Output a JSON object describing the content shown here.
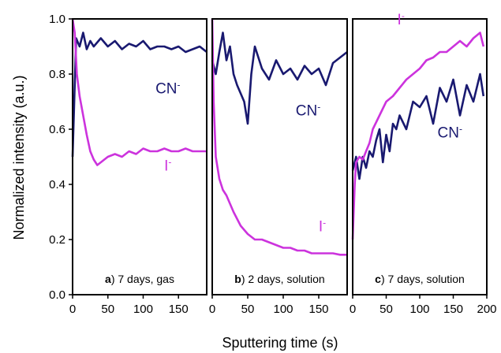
{
  "colors": {
    "cn": "#191970",
    "iodide": "#cc33dd",
    "axis": "#000000"
  },
  "chart_data": {
    "type": "line",
    "ylabel": "Normalized intensity (a.u.)",
    "xlabel": "Sputtering time (s)",
    "ylim": [
      0,
      1.0
    ],
    "yticks": [
      "0.0",
      "0.2",
      "0.4",
      "0.6",
      "0.8",
      "1.0"
    ],
    "grid": false,
    "panels": [
      {
        "panel_id": "a",
        "label_rest": ") 7 days, gas",
        "xlim": [
          0,
          190
        ],
        "xticks": [
          "0",
          "50",
          "100",
          "150"
        ],
        "xtick_values": [
          0,
          50,
          100,
          150
        ],
        "series": [
          {
            "name": "CN⁻",
            "color": "#191970",
            "x": [
              0,
              5,
              10,
              15,
              20,
              25,
              30,
              40,
              50,
              60,
              70,
              80,
              90,
              100,
              110,
              120,
              130,
              140,
              150,
              160,
              170,
              180,
              190
            ],
            "y": [
              0.5,
              0.93,
              0.9,
              0.95,
              0.89,
              0.92,
              0.9,
              0.93,
              0.9,
              0.92,
              0.89,
              0.91,
              0.9,
              0.92,
              0.89,
              0.9,
              0.9,
              0.89,
              0.9,
              0.88,
              0.89,
              0.9,
              0.88
            ]
          },
          {
            "name": "I⁻",
            "color": "#cc33dd",
            "x": [
              0,
              3,
              6,
              10,
              15,
              20,
              25,
              30,
              35,
              40,
              50,
              60,
              70,
              80,
              90,
              100,
              110,
              120,
              130,
              140,
              150,
              160,
              170,
              180,
              190
            ],
            "y": [
              1.0,
              0.95,
              0.8,
              0.72,
              0.65,
              0.58,
              0.52,
              0.49,
              0.47,
              0.48,
              0.5,
              0.51,
              0.5,
              0.52,
              0.51,
              0.53,
              0.52,
              0.52,
              0.53,
              0.52,
              0.52,
              0.53,
              0.52,
              0.52,
              0.52
            ]
          }
        ],
        "annotations": [
          {
            "text": "CN⁻",
            "x": 135,
            "y": 0.73,
            "color": "#191970"
          },
          {
            "text": "I⁻",
            "x": 135,
            "y": 0.45,
            "color": "#cc33dd"
          }
        ]
      },
      {
        "panel_id": "b",
        "label_rest": ") 2 days, solution",
        "xlim": [
          0,
          190
        ],
        "xticks": [
          "0",
          "50",
          "100",
          "150"
        ],
        "xtick_values": [
          0,
          50,
          100,
          150
        ],
        "series": [
          {
            "name": "CN⁻",
            "color": "#191970",
            "x": [
              0,
              5,
              10,
              15,
              20,
              25,
              30,
              35,
              40,
              45,
              50,
              55,
              60,
              70,
              80,
              90,
              100,
              110,
              120,
              130,
              140,
              150,
              160,
              170,
              180,
              190
            ],
            "y": [
              0.85,
              0.8,
              0.88,
              0.95,
              0.85,
              0.9,
              0.8,
              0.76,
              0.73,
              0.7,
              0.62,
              0.8,
              0.9,
              0.82,
              0.78,
              0.85,
              0.8,
              0.82,
              0.78,
              0.83,
              0.8,
              0.82,
              0.76,
              0.84,
              0.86,
              0.88
            ]
          },
          {
            "name": "I⁻",
            "color": "#cc33dd",
            "x": [
              0,
              2,
              5,
              10,
              15,
              20,
              30,
              40,
              50,
              60,
              70,
              80,
              90,
              100,
              110,
              120,
              130,
              140,
              150,
              160,
              170,
              180,
              190
            ],
            "y": [
              1.0,
              0.7,
              0.5,
              0.42,
              0.38,
              0.36,
              0.3,
              0.25,
              0.22,
              0.2,
              0.2,
              0.19,
              0.18,
              0.17,
              0.17,
              0.16,
              0.16,
              0.15,
              0.15,
              0.15,
              0.15,
              0.145,
              0.145
            ]
          }
        ],
        "annotations": [
          {
            "text": "CN⁻",
            "x": 135,
            "y": 0.65,
            "color": "#191970"
          },
          {
            "text": "I⁻",
            "x": 155,
            "y": 0.23,
            "color": "#cc33dd"
          }
        ]
      },
      {
        "panel_id": "c",
        "label_rest": ") 7 days, solution",
        "xlim": [
          0,
          200
        ],
        "xticks": [
          "0",
          "50",
          "100",
          "150",
          "200"
        ],
        "xtick_values": [
          0,
          50,
          100,
          150,
          200
        ],
        "series": [
          {
            "name": "CN⁻",
            "color": "#191970",
            "x": [
              0,
              5,
              10,
              15,
              20,
              25,
              30,
              35,
              40,
              45,
              50,
              55,
              60,
              65,
              70,
              80,
              90,
              100,
              110,
              120,
              130,
              140,
              150,
              160,
              170,
              180,
              190,
              195
            ],
            "y": [
              0.45,
              0.5,
              0.42,
              0.5,
              0.46,
              0.52,
              0.5,
              0.56,
              0.6,
              0.48,
              0.58,
              0.52,
              0.62,
              0.6,
              0.65,
              0.6,
              0.7,
              0.68,
              0.72,
              0.62,
              0.75,
              0.7,
              0.78,
              0.65,
              0.76,
              0.7,
              0.8,
              0.72
            ]
          },
          {
            "name": "I⁻",
            "color": "#cc33dd",
            "x": [
              0,
              3,
              5,
              10,
              15,
              20,
              25,
              30,
              40,
              50,
              60,
              70,
              80,
              90,
              100,
              110,
              120,
              130,
              140,
              150,
              160,
              170,
              180,
              190,
              195
            ],
            "y": [
              0.2,
              0.4,
              0.48,
              0.5,
              0.49,
              0.52,
              0.55,
              0.6,
              0.65,
              0.7,
              0.72,
              0.75,
              0.78,
              0.8,
              0.82,
              0.85,
              0.86,
              0.88,
              0.88,
              0.9,
              0.92,
              0.9,
              0.93,
              0.95,
              0.9
            ]
          }
        ],
        "annotations": [
          {
            "text": "I⁻",
            "x": 72,
            "y": 0.98,
            "color": "#cc33dd"
          },
          {
            "text": "CN⁻",
            "x": 145,
            "y": 0.57,
            "color": "#191970"
          }
        ]
      }
    ]
  }
}
